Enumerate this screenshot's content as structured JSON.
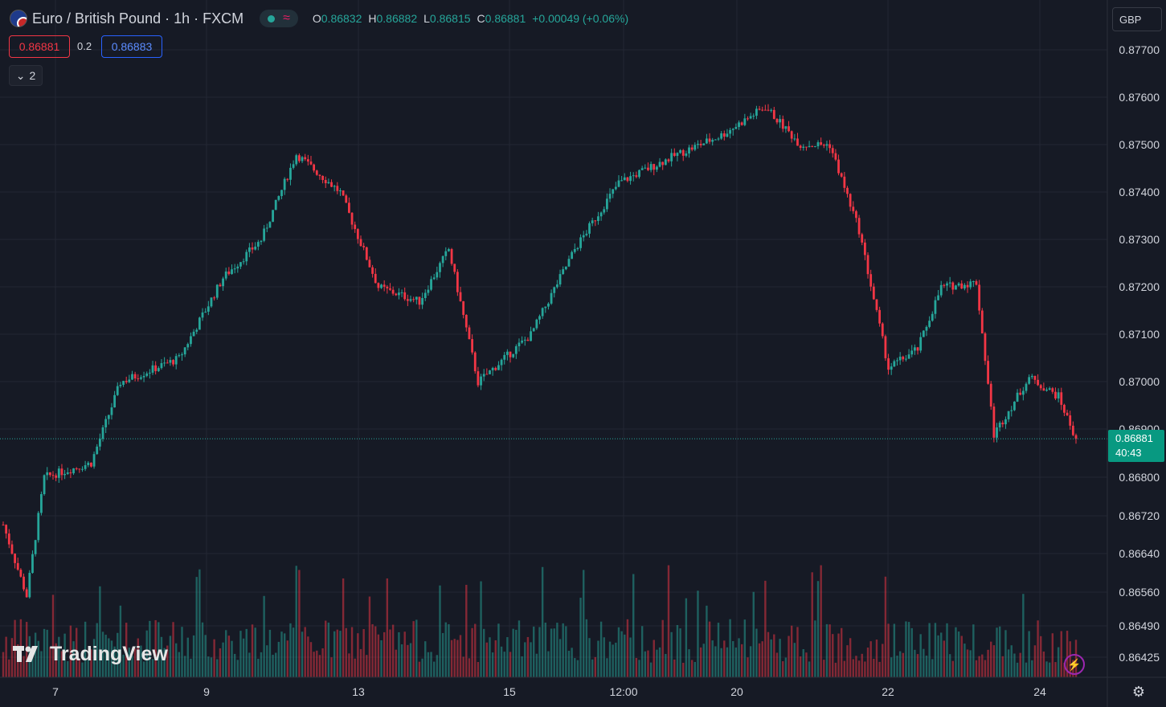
{
  "header": {
    "symbol": "Euro / British Pound · 1h · FXCM",
    "ohlc": {
      "o_label": "O",
      "o": "0.86832",
      "h_label": "H",
      "h": "0.86882",
      "l_label": "L",
      "l": "0.86815",
      "c_label": "C",
      "c": "0.86881",
      "change": "+0.00049 (+0.06%)"
    },
    "sell_price": "0.86881",
    "spread": "0.2",
    "buy_price": "0.86883",
    "collapsed_count": "2"
  },
  "currency": "GBP",
  "last_price": "0.86881",
  "countdown": "40:43",
  "logo_text": "TradingView",
  "colors": {
    "up": "#26a69a",
    "down": "#f23645",
    "background": "#161a25",
    "grid": "#232733",
    "last_price_bg": "#089981"
  },
  "chart_data": {
    "type": "candlestick",
    "title": "Euro / British Pound · 1h · FXCM",
    "y_ticks": [
      "0.87700",
      "0.87600",
      "0.87500",
      "0.87400",
      "0.87300",
      "0.87200",
      "0.87100",
      "0.87000",
      "0.86900",
      "0.86800",
      "0.86720",
      "0.86640",
      "0.86560",
      "0.86490",
      "0.86425"
    ],
    "x_ticks": [
      "7",
      "9",
      "13",
      "15",
      "12:00",
      "20",
      "22",
      "24"
    ],
    "ylim": [
      0.8638,
      0.8778
    ],
    "grid": true,
    "trend_points": [
      {
        "i": 0,
        "p": 0.867
      },
      {
        "i": 8,
        "p": 0.8655
      },
      {
        "i": 14,
        "p": 0.868
      },
      {
        "i": 30,
        "p": 0.8683
      },
      {
        "i": 40,
        "p": 0.87
      },
      {
        "i": 60,
        "p": 0.8705
      },
      {
        "i": 75,
        "p": 0.8722
      },
      {
        "i": 88,
        "p": 0.873
      },
      {
        "i": 100,
        "p": 0.8748
      },
      {
        "i": 115,
        "p": 0.874
      },
      {
        "i": 128,
        "p": 0.872
      },
      {
        "i": 142,
        "p": 0.8717
      },
      {
        "i": 152,
        "p": 0.8728
      },
      {
        "i": 162,
        "p": 0.87
      },
      {
        "i": 180,
        "p": 0.871
      },
      {
        "i": 195,
        "p": 0.8728
      },
      {
        "i": 210,
        "p": 0.8742
      },
      {
        "i": 230,
        "p": 0.8748
      },
      {
        "i": 245,
        "p": 0.8752
      },
      {
        "i": 260,
        "p": 0.8758
      },
      {
        "i": 272,
        "p": 0.875
      },
      {
        "i": 282,
        "p": 0.875
      },
      {
        "i": 292,
        "p": 0.8732
      },
      {
        "i": 302,
        "p": 0.8703
      },
      {
        "i": 312,
        "p": 0.8707
      },
      {
        "i": 320,
        "p": 0.872
      },
      {
        "i": 332,
        "p": 0.8721
      },
      {
        "i": 338,
        "p": 0.8689
      },
      {
        "i": 350,
        "p": 0.8701
      },
      {
        "i": 360,
        "p": 0.8697
      },
      {
        "i": 366,
        "p": 0.8688
      }
    ],
    "candle_count": 367,
    "last_value": 0.86881
  }
}
